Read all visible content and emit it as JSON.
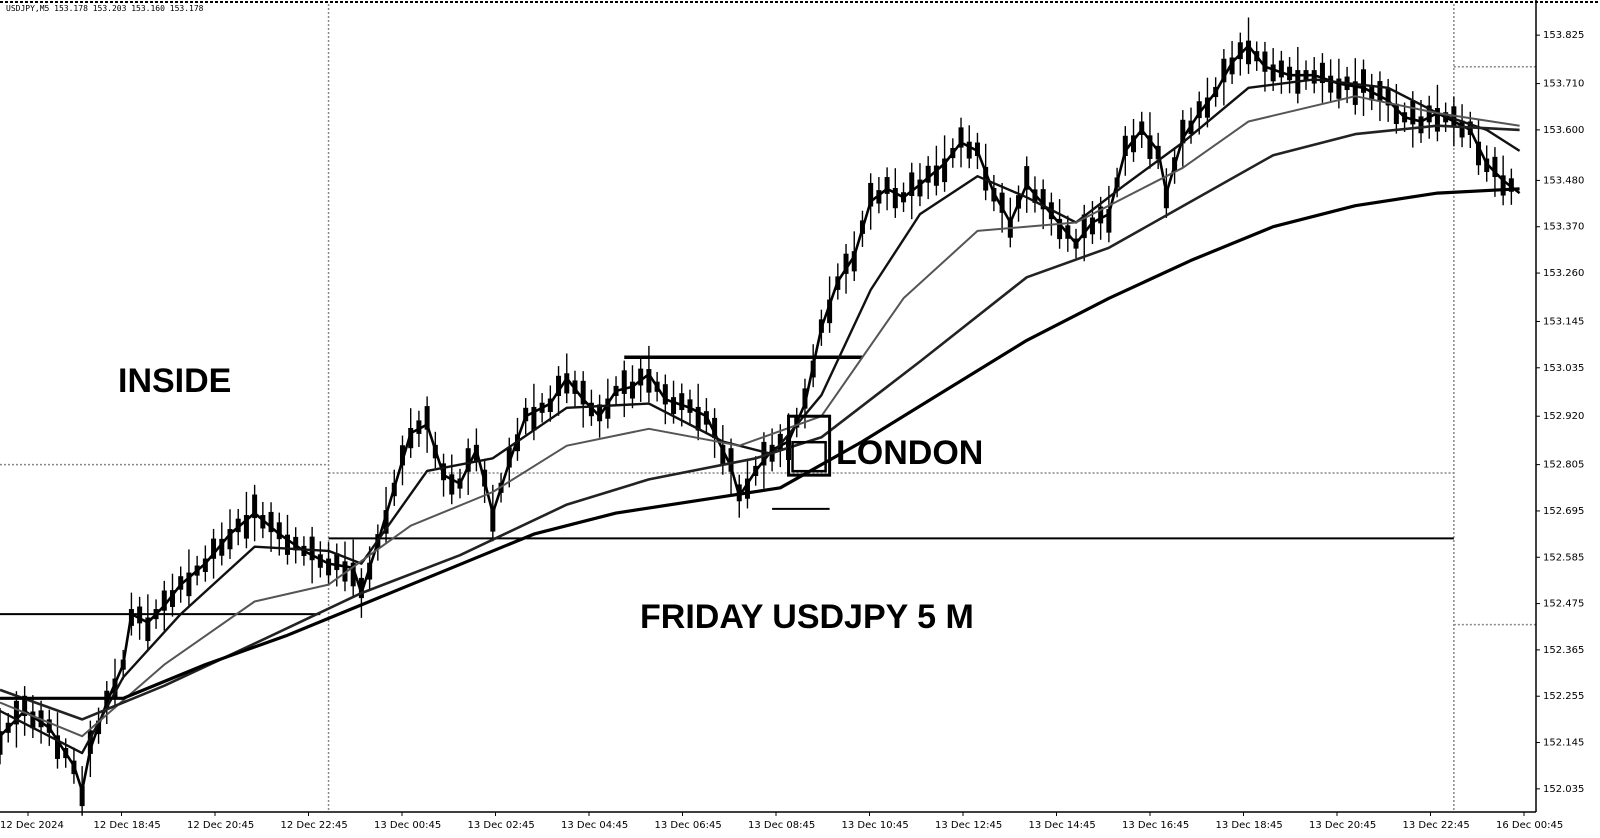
{
  "chart_data": {
    "type": "line",
    "title": "",
    "header_text": "USDJPY,M5  153.178  153.203  153.160  153.178",
    "xlabel": "",
    "ylabel": "",
    "ylim": [
      151.98,
      153.88
    ],
    "x_tick_labels": [
      "12 Dec 2024",
      "12 Dec 18:45",
      "12 Dec 20:45",
      "12 Dec 22:45",
      "13 Dec 00:45",
      "13 Dec 02:45",
      "13 Dec 04:45",
      "13 Dec 06:45",
      "13 Dec 08:45",
      "13 Dec 10:45",
      "13 Dec 12:45",
      "13 Dec 14:45",
      "13 Dec 16:45",
      "13 Dec 18:45",
      "13 Dec 20:45",
      "13 Dec 22:45",
      "16 Dec 00:45"
    ],
    "y_ticks": [
      152.035,
      152.145,
      152.255,
      152.365,
      152.475,
      152.585,
      152.695,
      152.805,
      152.92,
      153.035,
      153.145,
      153.26,
      153.37,
      153.48,
      153.6,
      153.71,
      153.825
    ],
    "grid": false,
    "annotations": {
      "inside": "INSIDE",
      "london": "LONDON",
      "chart_caption": "FRIDAY USDJPY 5 M"
    },
    "price_points": [
      [
        0,
        152.16
      ],
      [
        3,
        152.22
      ],
      [
        6,
        152.18
      ],
      [
        9,
        152.09
      ],
      [
        10,
        152.03
      ],
      [
        11,
        152.13
      ],
      [
        13,
        152.24
      ],
      [
        15,
        152.33
      ],
      [
        16,
        152.45
      ],
      [
        18,
        152.43
      ],
      [
        20,
        152.47
      ],
      [
        22,
        152.52
      ],
      [
        25,
        152.57
      ],
      [
        28,
        152.64
      ],
      [
        31,
        152.69
      ],
      [
        34,
        152.64
      ],
      [
        37,
        152.6
      ],
      [
        40,
        152.57
      ],
      [
        43,
        152.56
      ],
      [
        44,
        152.5
      ],
      [
        46,
        152.62
      ],
      [
        48,
        152.75
      ],
      [
        50,
        152.88
      ],
      [
        52,
        152.9
      ],
      [
        54,
        152.78
      ],
      [
        56,
        152.76
      ],
      [
        58,
        152.84
      ],
      [
        60,
        152.69
      ],
      [
        62,
        152.81
      ],
      [
        64,
        152.92
      ],
      [
        67,
        152.95
      ],
      [
        69,
        153.01
      ],
      [
        71,
        152.96
      ],
      [
        73,
        152.92
      ],
      [
        75,
        152.98
      ],
      [
        77,
        152.99
      ],
      [
        79,
        153.02
      ],
      [
        81,
        152.96
      ],
      [
        84,
        152.94
      ],
      [
        86,
        152.92
      ],
      [
        88,
        152.84
      ],
      [
        89,
        152.8
      ],
      [
        90,
        152.73
      ],
      [
        92,
        152.79
      ],
      [
        94,
        152.84
      ],
      [
        96,
        152.86
      ],
      [
        98,
        152.95
      ],
      [
        100,
        153.13
      ],
      [
        102,
        153.24
      ],
      [
        104,
        153.3
      ],
      [
        106,
        153.43
      ],
      [
        108,
        153.46
      ],
      [
        110,
        153.44
      ],
      [
        112,
        153.47
      ],
      [
        115,
        153.52
      ],
      [
        117,
        153.57
      ],
      [
        119,
        153.55
      ],
      [
        121,
        153.45
      ],
      [
        123,
        153.38
      ],
      [
        125,
        153.47
      ],
      [
        128,
        153.4
      ],
      [
        131,
        153.33
      ],
      [
        133,
        153.38
      ],
      [
        135,
        153.4
      ],
      [
        137,
        153.55
      ],
      [
        139,
        153.6
      ],
      [
        141,
        153.55
      ],
      [
        142,
        153.45
      ],
      [
        144,
        153.58
      ],
      [
        146,
        153.64
      ],
      [
        148,
        153.69
      ],
      [
        150,
        153.76
      ],
      [
        152,
        153.8
      ],
      [
        154,
        153.75
      ],
      [
        157,
        153.73
      ],
      [
        160,
        153.73
      ],
      [
        163,
        153.71
      ],
      [
        166,
        153.7
      ],
      [
        169,
        153.67
      ],
      [
        171,
        153.63
      ],
      [
        173,
        153.62
      ],
      [
        175,
        153.64
      ],
      [
        177,
        153.62
      ],
      [
        179,
        153.6
      ],
      [
        181,
        153.52
      ],
      [
        183,
        153.48
      ],
      [
        185,
        153.45
      ]
    ],
    "series": [
      {
        "ma_period": 20,
        "values": [
          [
            0,
            152.22
          ],
          [
            10,
            152.12
          ],
          [
            15,
            152.3
          ],
          [
            22,
            152.45
          ],
          [
            31,
            152.61
          ],
          [
            40,
            152.6
          ],
          [
            44,
            152.57
          ],
          [
            52,
            152.79
          ],
          [
            60,
            152.82
          ],
          [
            69,
            152.94
          ],
          [
            79,
            152.95
          ],
          [
            88,
            152.86
          ],
          [
            94,
            152.83
          ],
          [
            100,
            152.97
          ],
          [
            106,
            153.22
          ],
          [
            112,
            153.4
          ],
          [
            119,
            153.49
          ],
          [
            125,
            153.44
          ],
          [
            131,
            153.38
          ],
          [
            137,
            153.47
          ],
          [
            144,
            153.57
          ],
          [
            152,
            153.7
          ],
          [
            160,
            153.72
          ],
          [
            169,
            153.7
          ],
          [
            175,
            153.64
          ],
          [
            181,
            153.6
          ],
          [
            185,
            153.55
          ]
        ]
      },
      {
        "ma_period": 50,
        "values": [
          [
            0,
            152.24
          ],
          [
            10,
            152.16
          ],
          [
            20,
            152.33
          ],
          [
            31,
            152.48
          ],
          [
            40,
            152.52
          ],
          [
            50,
            152.66
          ],
          [
            60,
            152.74
          ],
          [
            69,
            152.85
          ],
          [
            79,
            152.89
          ],
          [
            90,
            152.85
          ],
          [
            100,
            152.92
          ],
          [
            110,
            153.2
          ],
          [
            119,
            153.36
          ],
          [
            131,
            153.38
          ],
          [
            144,
            153.51
          ],
          [
            152,
            153.62
          ],
          [
            165,
            153.68
          ],
          [
            175,
            153.64
          ],
          [
            185,
            153.61
          ]
        ]
      },
      {
        "ma_period": 100,
        "values": [
          [
            0,
            152.27
          ],
          [
            10,
            152.2
          ],
          [
            20,
            152.28
          ],
          [
            31,
            152.38
          ],
          [
            44,
            152.5
          ],
          [
            56,
            152.59
          ],
          [
            69,
            152.71
          ],
          [
            79,
            152.77
          ],
          [
            92,
            152.82
          ],
          [
            100,
            152.87
          ],
          [
            112,
            153.05
          ],
          [
            125,
            153.25
          ],
          [
            135,
            153.32
          ],
          [
            145,
            153.43
          ],
          [
            155,
            153.54
          ],
          [
            165,
            153.59
          ],
          [
            175,
            153.61
          ],
          [
            185,
            153.6
          ]
        ]
      },
      {
        "ma_period": 200,
        "values": [
          [
            0,
            152.25
          ],
          [
            15,
            152.25
          ],
          [
            25,
            152.33
          ],
          [
            35,
            152.4
          ],
          [
            45,
            152.48
          ],
          [
            55,
            152.56
          ],
          [
            65,
            152.64
          ],
          [
            75,
            152.69
          ],
          [
            85,
            152.72
          ],
          [
            95,
            152.75
          ],
          [
            105,
            152.86
          ],
          [
            115,
            152.98
          ],
          [
            125,
            153.1
          ],
          [
            135,
            153.2
          ],
          [
            145,
            153.29
          ],
          [
            155,
            153.37
          ],
          [
            165,
            153.42
          ],
          [
            175,
            153.45
          ],
          [
            185,
            153.46
          ]
        ]
      }
    ],
    "session_levels": [
      {
        "name": "session-high-left",
        "y": 152.805,
        "x_from": 0,
        "x_to": 40
      },
      {
        "name": "session-high-mid",
        "y": 152.785,
        "x_from": 40,
        "x_to": 177
      },
      {
        "name": "session-high-right",
        "y": 153.75,
        "x_from": 177,
        "x_to": 187
      },
      {
        "name": "session-low-right",
        "y": 152.425,
        "x_from": 177,
        "x_to": 187
      }
    ],
    "horizontal_lines": [
      {
        "name": "asia-high-line",
        "y": 153.06,
        "x_from": 76,
        "x_to": 105
      },
      {
        "name": "left-support-line",
        "y": 152.45,
        "x_from": 0,
        "x_to": 39
      },
      {
        "name": "long-support-line",
        "y": 152.63,
        "x_from": 40,
        "x_to": 177
      },
      {
        "name": "london-low-line",
        "y": 152.7,
        "x_from": 94,
        "x_to": 101
      }
    ],
    "session_separators": [
      40,
      177
    ],
    "london_box": {
      "x_from": 96,
      "x_to": 101,
      "y_from": 152.78,
      "y_to": 152.92
    }
  }
}
